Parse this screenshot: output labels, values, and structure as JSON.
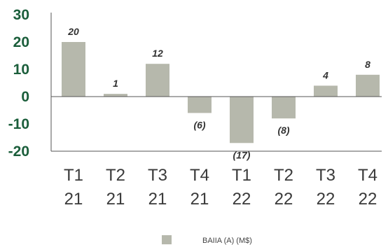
{
  "chart_data": {
    "type": "bar",
    "categories": [
      [
        "T1",
        "21"
      ],
      [
        "T2",
        "21"
      ],
      [
        "T3",
        "21"
      ],
      [
        "T4",
        "21"
      ],
      [
        "T1",
        "22"
      ],
      [
        "T2",
        "22"
      ],
      [
        "T3",
        "22"
      ],
      [
        "T4",
        "22"
      ]
    ],
    "values": [
      20,
      1,
      12,
      -6,
      -17,
      -8,
      4,
      8
    ],
    "data_labels": [
      "20",
      "1",
      "12",
      "(6)",
      "(17)",
      "(8)",
      "4",
      "8"
    ],
    "y_ticks": [
      "30",
      "20",
      "10",
      "0",
      "-10",
      "-20"
    ],
    "ylim": [
      -20,
      30
    ],
    "legend": {
      "label": "BAIIA (A) (M$)",
      "position": "bottom-center"
    },
    "colors": {
      "bar": "#b6b8ac",
      "axis": "#555555",
      "ytick": "#1b5e3b",
      "xtick": "#3a3a3a"
    },
    "grid": false
  }
}
